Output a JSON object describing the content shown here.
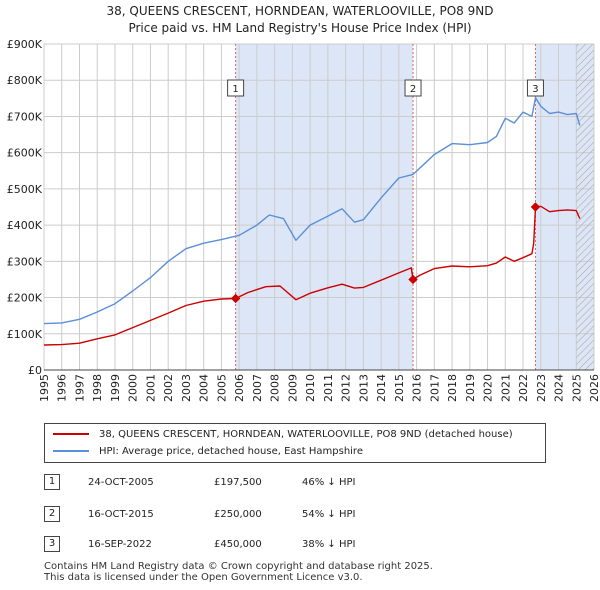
{
  "title": {
    "line1": "38, QUEENS CRESCENT, HORNDEAN, WATERLOOVILLE, PO8 9ND",
    "line2": "Price paid vs. HM Land Registry's House Price Index (HPI)"
  },
  "colors": {
    "property": "#cc0000",
    "hpi": "#5b8fd9",
    "shade": "#dde6f7",
    "grid": "#cccccc",
    "event_line": "#e06666"
  },
  "chart_data": {
    "type": "line",
    "title": "38, QUEENS CRESCENT, HORNDEAN, WATERLOOVILLE, PO8 9ND — Price paid vs. HM Land Registry's House Price Index (HPI)",
    "xlabel": "",
    "ylabel": "",
    "xlim": [
      1995.0,
      2026.0
    ],
    "ylim": [
      0,
      900000
    ],
    "x_ticks": [
      "1995",
      "1996",
      "1997",
      "1998",
      "1999",
      "2000",
      "2001",
      "2002",
      "2003",
      "2004",
      "2005",
      "2006",
      "2007",
      "2008",
      "2009",
      "2010",
      "2011",
      "2012",
      "2013",
      "2014",
      "2015",
      "2016",
      "2017",
      "2018",
      "2019",
      "2020",
      "2021",
      "2022",
      "2023",
      "2024",
      "2025",
      "2026"
    ],
    "y_ticks": [
      {
        "value": 0,
        "label": "£0"
      },
      {
        "value": 100000,
        "label": "£100K"
      },
      {
        "value": 200000,
        "label": "£200K"
      },
      {
        "value": 300000,
        "label": "£300K"
      },
      {
        "value": 400000,
        "label": "£400K"
      },
      {
        "value": 500000,
        "label": "£500K"
      },
      {
        "value": 600000,
        "label": "£600K"
      },
      {
        "value": 700000,
        "label": "£700K"
      },
      {
        "value": 800000,
        "label": "£800K"
      },
      {
        "value": 900000,
        "label": "£900K"
      }
    ],
    "shaded_regions": [
      {
        "from": 2005.8,
        "to": 2015.8
      },
      {
        "from": 2022.7,
        "to": 2026.0
      }
    ],
    "hatched_region": {
      "from": 2025.0,
      "to": 2026.0
    },
    "events": [
      {
        "label": "1",
        "x": 2005.8
      },
      {
        "label": "2",
        "x": 2015.8
      },
      {
        "label": "3",
        "x": 2022.7
      }
    ],
    "series": [
      {
        "name": "38, QUEENS CRESCENT, HORNDEAN, WATERLOOVILLE, PO8 9ND (detached house)",
        "color": "#cc0000",
        "x": [
          1995.0,
          1996.0,
          1997.0,
          1998.0,
          1999.0,
          2000.0,
          2001.0,
          2002.0,
          2003.0,
          2004.0,
          2005.0,
          2005.8,
          2006.5,
          2007.5,
          2008.3,
          2009.2,
          2010.0,
          2011.0,
          2011.8,
          2012.5,
          2013.0,
          2014.0,
          2015.0,
          2015.7,
          2015.8,
          2016.2,
          2017.0,
          2018.0,
          2019.0,
          2020.0,
          2020.5,
          2021.0,
          2021.5,
          2022.0,
          2022.5,
          2022.6,
          2022.7,
          2023.0,
          2023.5,
          2024.0,
          2024.5,
          2025.0,
          2025.2
        ],
        "y": [
          69000,
          70000,
          74000,
          86000,
          97000,
          117000,
          137000,
          157000,
          178000,
          190000,
          196000,
          197500,
          214000,
          230000,
          232000,
          194000,
          212000,
          227000,
          237000,
          226000,
          228000,
          248000,
          268000,
          282000,
          250000,
          262000,
          280000,
          287000,
          285000,
          288000,
          295000,
          312000,
          300000,
          310000,
          321000,
          350000,
          450000,
          452000,
          437000,
          440000,
          442000,
          440000,
          418000
        ]
      },
      {
        "name": "HPI: Average price, detached house, East Hampshire",
        "color": "#5b8fd9",
        "x": [
          1995.0,
          1996.0,
          1997.0,
          1998.0,
          1999.0,
          2000.0,
          2001.0,
          2002.0,
          2003.0,
          2004.0,
          2005.0,
          2006.0,
          2007.0,
          2007.7,
          2008.5,
          2009.2,
          2010.0,
          2011.0,
          2011.8,
          2012.5,
          2013.0,
          2014.0,
          2015.0,
          2015.8,
          2016.5,
          2017.0,
          2018.0,
          2019.0,
          2020.0,
          2020.5,
          2021.0,
          2021.5,
          2022.0,
          2022.5,
          2022.7,
          2023.0,
          2023.5,
          2024.0,
          2024.5,
          2025.0,
          2025.2
        ],
        "y": [
          128000,
          130000,
          140000,
          160000,
          183000,
          218000,
          255000,
          300000,
          335000,
          350000,
          360000,
          372000,
          400000,
          428000,
          418000,
          358000,
          400000,
          425000,
          445000,
          408000,
          415000,
          475000,
          530000,
          540000,
          572000,
          595000,
          625000,
          622000,
          628000,
          645000,
          695000,
          682000,
          712000,
          700000,
          752000,
          728000,
          708000,
          712000,
          705000,
          708000,
          675000
        ]
      }
    ]
  },
  "legend": {
    "property_label": "38, QUEENS CRESCENT, HORNDEAN, WATERLOOVILLE, PO8 9ND (detached house)",
    "hpi_label": "HPI: Average price, detached house, East Hampshire"
  },
  "sales": [
    {
      "num": "1",
      "date": "24-OCT-2005",
      "price": "£197,500",
      "hpi": "46% ↓ HPI"
    },
    {
      "num": "2",
      "date": "16-OCT-2015",
      "price": "£250,000",
      "hpi": "54% ↓ HPI"
    },
    {
      "num": "3",
      "date": "16-SEP-2022",
      "price": "£450,000",
      "hpi": "38% ↓ HPI"
    }
  ],
  "footer": {
    "line1": "Contains HM Land Registry data © Crown copyright and database right 2025.",
    "line2": "This data is licensed under the Open Government Licence v3.0."
  }
}
